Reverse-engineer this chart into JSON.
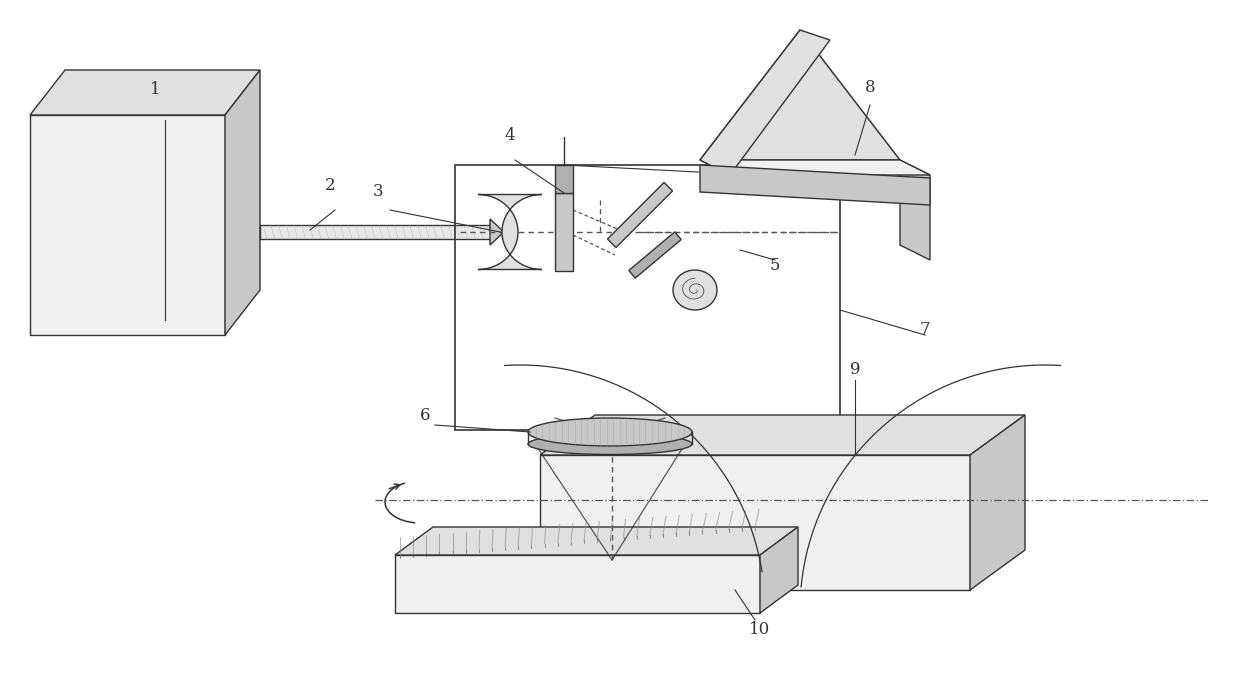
{
  "bg": "#ffffff",
  "lc": "#333333",
  "lw": 1.0,
  "gray_light": "#f0f0f0",
  "gray_mid": "#e0e0e0",
  "gray_dark": "#c8c8c8",
  "gray_darker": "#b0b0b0"
}
